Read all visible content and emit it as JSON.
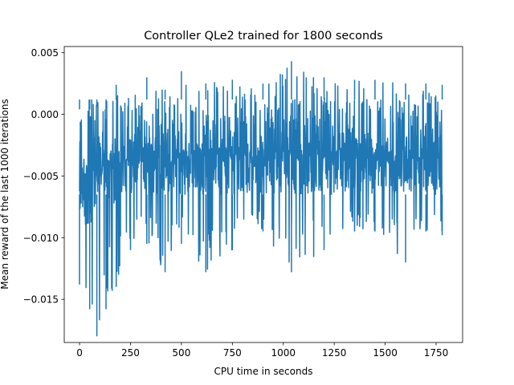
{
  "chart_data": {
    "type": "line",
    "title": "Controller QLe2 trained for 1800 seconds",
    "xlabel": "CPU time in seconds",
    "ylabel": "Mean reward of the last 1000 iterations",
    "xlim": [
      -75,
      1880
    ],
    "ylim": [
      -0.0185,
      0.0055
    ],
    "xticks": [
      0,
      250,
      500,
      750,
      1000,
      1250,
      1500,
      1750
    ],
    "xtick_labels": [
      "0",
      "250",
      "500",
      "750",
      "1000",
      "1250",
      "1500",
      "1750"
    ],
    "yticks": [
      -0.015,
      -0.01,
      -0.005,
      0.0,
      0.005
    ],
    "ytick_labels": [
      "−0.015",
      "−0.010",
      "−0.005",
      "0.000",
      "0.005"
    ],
    "grid": false,
    "color": "#1f77b4",
    "series": [
      {
        "x_range": [
          0,
          1780
        ],
        "envelope": [
          {
            "x": 0,
            "y_min": -0.0138,
            "y_max": 0.0004
          },
          {
            "x": 50,
            "y_min": -0.0158,
            "y_max": 0.0004
          },
          {
            "x": 85,
            "y_min": -0.018,
            "y_max": 0.0006
          },
          {
            "x": 130,
            "y_min": -0.0158,
            "y_max": 0.0004
          },
          {
            "x": 180,
            "y_min": -0.014,
            "y_max": 0.0024
          },
          {
            "x": 250,
            "y_min": -0.011,
            "y_max": 0.0012
          },
          {
            "x": 330,
            "y_min": -0.0105,
            "y_max": 0.003
          },
          {
            "x": 420,
            "y_min": -0.0128,
            "y_max": 0.002
          },
          {
            "x": 500,
            "y_min": -0.0105,
            "y_max": 0.0035
          },
          {
            "x": 620,
            "y_min": -0.0128,
            "y_max": 0.0025
          },
          {
            "x": 750,
            "y_min": -0.011,
            "y_max": 0.0028
          },
          {
            "x": 900,
            "y_min": -0.0095,
            "y_max": 0.0025
          },
          {
            "x": 1040,
            "y_min": -0.0128,
            "y_max": 0.0043
          },
          {
            "x": 1200,
            "y_min": -0.011,
            "y_max": 0.003
          },
          {
            "x": 1350,
            "y_min": -0.0095,
            "y_max": 0.0028
          },
          {
            "x": 1450,
            "y_min": -0.0095,
            "y_max": 0.0028
          },
          {
            "x": 1600,
            "y_min": -0.012,
            "y_max": 0.0025
          },
          {
            "x": 1700,
            "y_min": -0.0095,
            "y_max": 0.0025
          },
          {
            "x": 1780,
            "y_min": -0.0098,
            "y_max": 0.0024
          }
        ],
        "typical_band": [
          -0.0065,
          0.0012
        ]
      }
    ]
  }
}
